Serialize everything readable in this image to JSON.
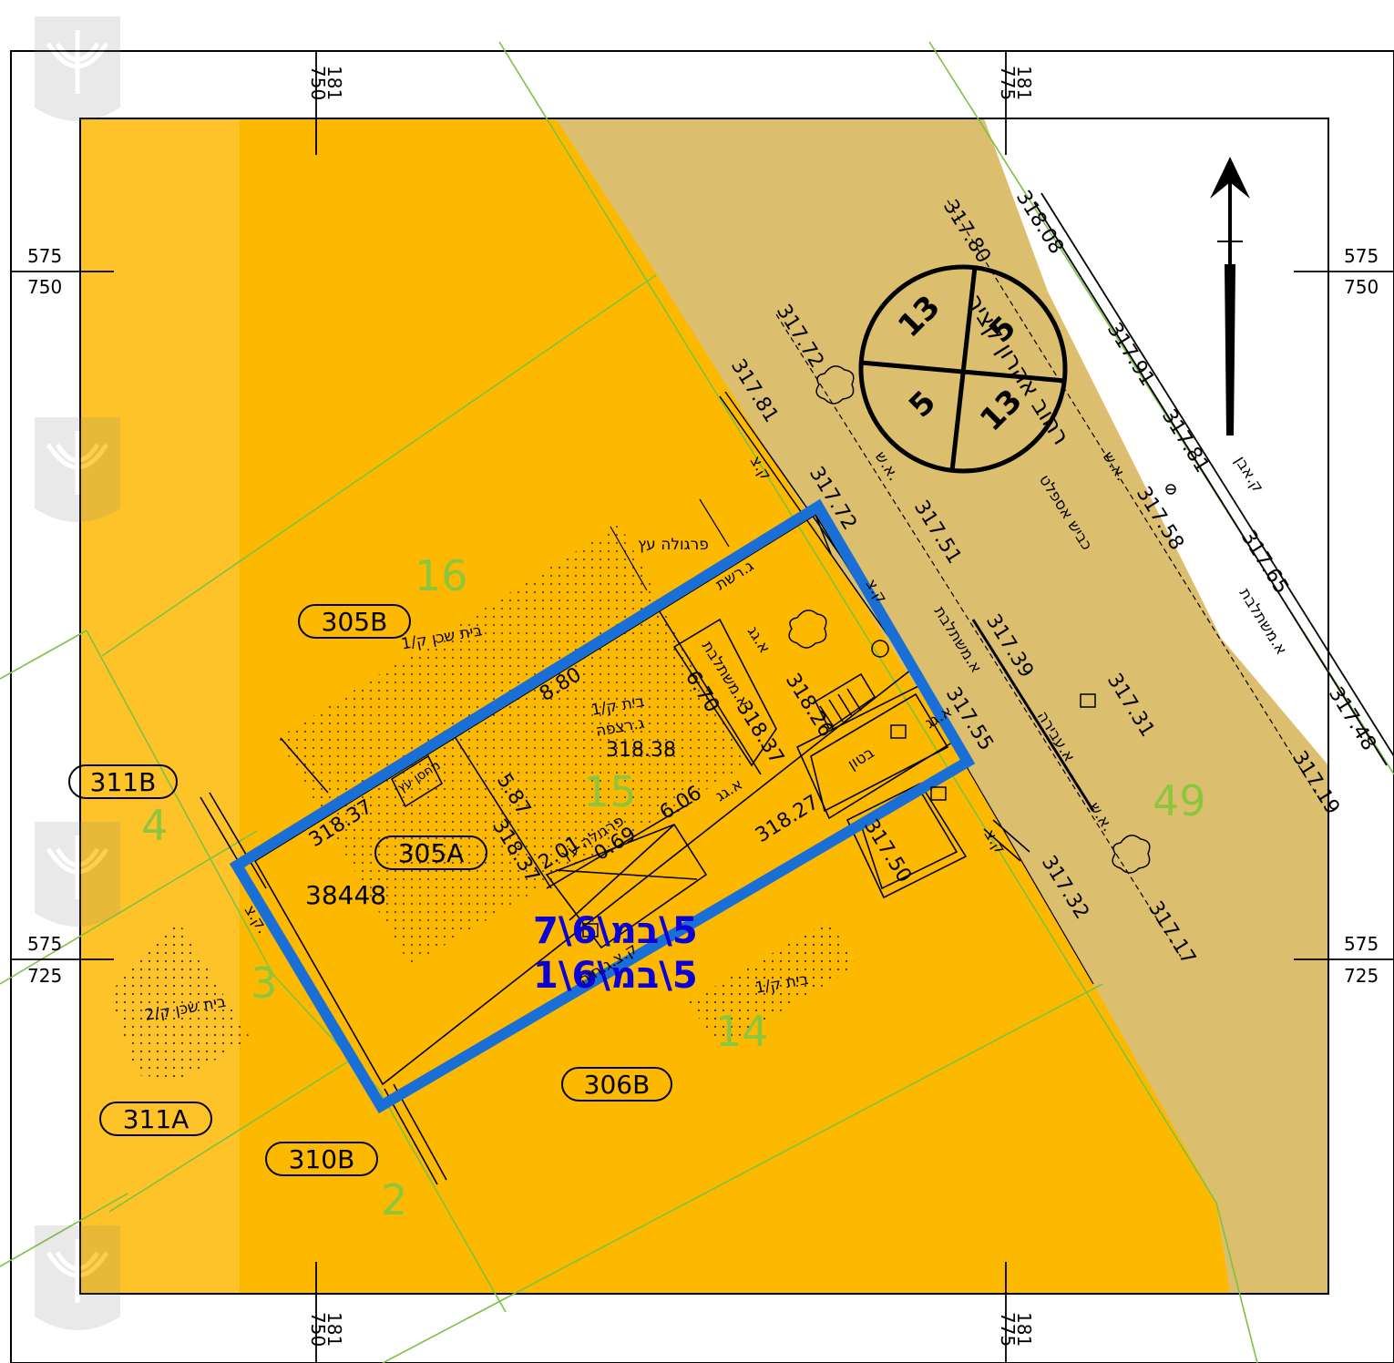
{
  "grid": {
    "top_left": [
      "750",
      "181"
    ],
    "top_right": [
      "775",
      "181"
    ],
    "bottom_left": [
      "750",
      "181"
    ],
    "bottom_right": [
      "775",
      "181"
    ],
    "left_upper": [
      "575",
      "750"
    ],
    "left_lower": [
      "575",
      "725"
    ],
    "right_upper": [
      "575",
      "750"
    ],
    "right_lower": [
      "575",
      "725"
    ]
  },
  "parcel_labels": {
    "p305B": "305B",
    "p305A": "305A",
    "p311B": "311B",
    "p311A": "311A",
    "p310B": "310B",
    "p306B": "306B",
    "block_number": "38448"
  },
  "lot_numbers": {
    "l16": "16",
    "l15": "15",
    "l14": "14",
    "l4": "4",
    "l3": "3",
    "l2": "2",
    "l49": "49"
  },
  "plan_ids": {
    "line1": "5\\במ\\6\\7",
    "line2": "5\\במ\\6\\1"
  },
  "road_circle": {
    "top_left": "13",
    "top_right": "5",
    "bottom_left": "5",
    "bottom_right": "13"
  },
  "street": {
    "name": "רחוב אהרון קציר",
    "surface": "כביש אספלט"
  },
  "hebrew_labels": {
    "pergola_wood_top": "פרגולה עץ",
    "net_fence": "ג.רשת",
    "neighbor_house_1": "בית שכן ק/1",
    "roof_tile": "א.גג",
    "interlock_1": "א.משתלבת",
    "house_1": "בית ק/1",
    "floor_level": "ג.רצפה",
    "wood_storage": "מחסן עץ",
    "pergola_wood_2": "פרגולה עץ",
    "roof_2": "א.גג",
    "concrete": "בטון",
    "roof_3": "א.גג",
    "interlock_2": "א.משתלבת",
    "curb_1": "ק.צ",
    "curb_2": "ק.צ",
    "curb_3": "ק.צ",
    "curb_4": "ק.צ.",
    "curb_5": "ק.צ",
    "passage": "א.עבירה",
    "sidewalk_1": "א.ש.",
    "sidewalk_2": "א.ש.",
    "sidewalk_3": "א.ש.",
    "interlock_3": "א.משתלבת",
    "stone_curb": "ק.אבן",
    "house_14": "בית ק/1",
    "neighbor_house_2": "בית שכן ק/2",
    "curb_back": "ק.צ.ג.חיה"
  },
  "elevations": {
    "e1": "318.08",
    "e2": "317.80",
    "e3": "317.72",
    "e4": "317.91",
    "e5": "317.81",
    "e6": "317.81",
    "e7": "317.58",
    "e8": "317.72",
    "e9": "317.51",
    "e10": "317.65",
    "e11": "317.39",
    "e12": "317.31",
    "e13": "317.48",
    "e14": "317.55",
    "e15": "317.19",
    "e16": "317.50",
    "e17": "317.32",
    "e18": "317.17",
    "e19": "318.26",
    "e20": "318.37",
    "e21": "318.38",
    "e22": "318.37",
    "e23": "318.37",
    "e24": "318.27"
  },
  "dimensions": {
    "d1": "8.80",
    "d2": "6.70",
    "d3": "5.87",
    "d4": "6.06",
    "d5": "2.01",
    "d6": "0.69"
  },
  "colors": {
    "parcel_fill": "#fdb900",
    "parcel_light": "#fec42c",
    "road_fill": "#dcbf6e",
    "boundary_green": "#7cc242",
    "highlight_blue": "#1a6fd6",
    "plan_text_blue": "#0b00d6"
  },
  "icons": [
    "emblem-watermark-icon",
    "north-arrow-icon",
    "tree-icon",
    "manhole-icon",
    "hydrant-icon"
  ]
}
